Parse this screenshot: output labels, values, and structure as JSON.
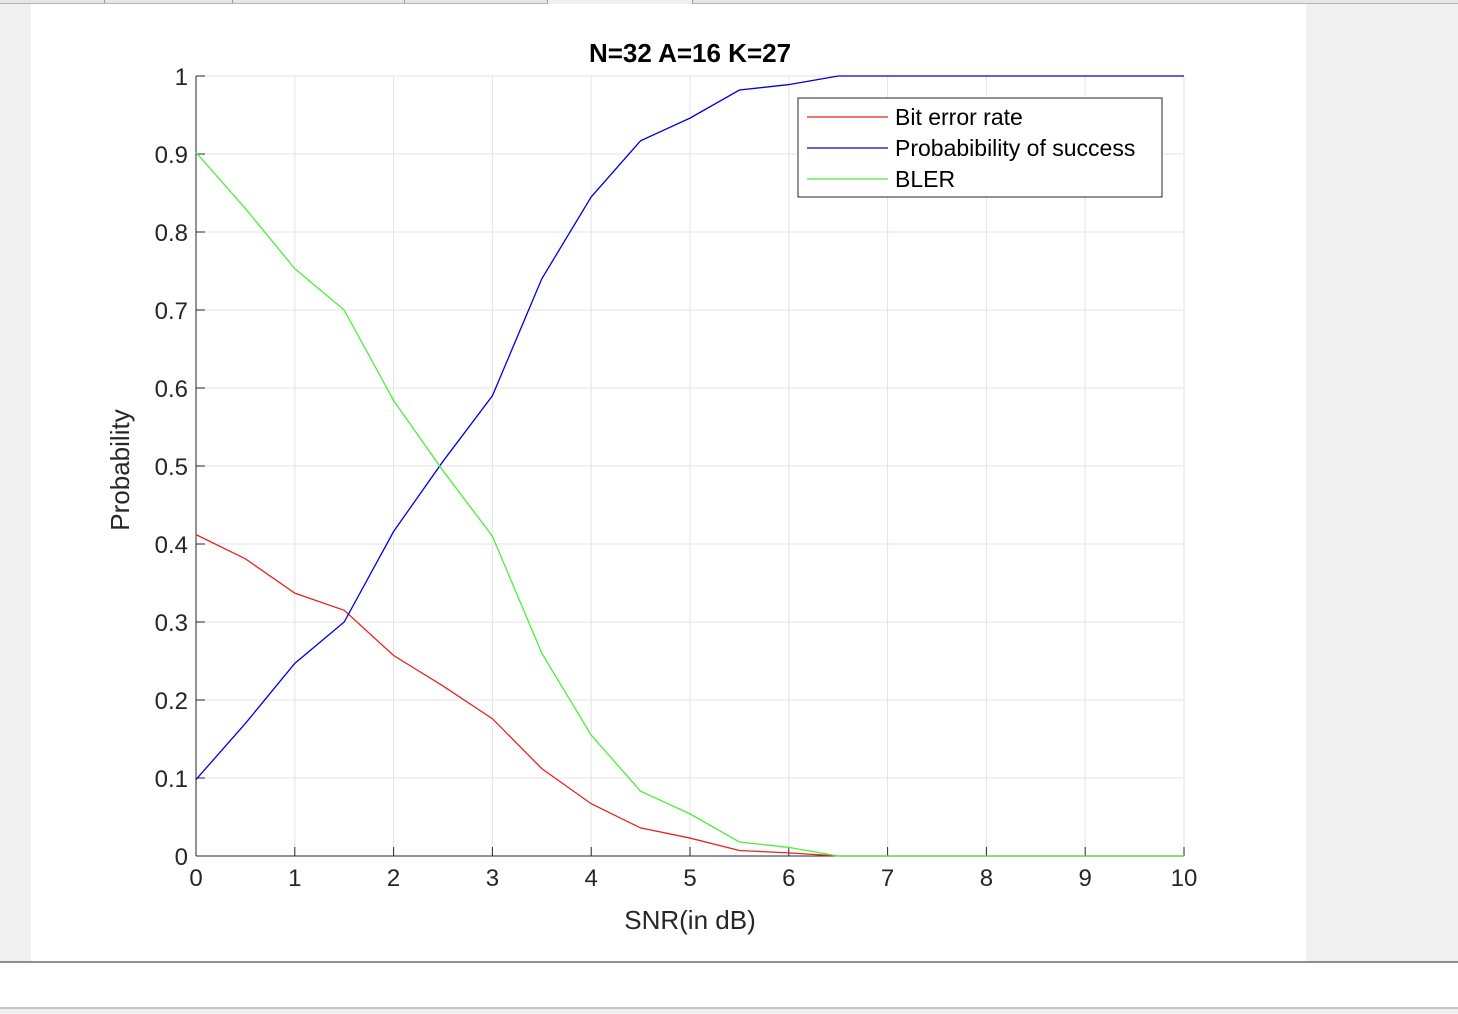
{
  "chart_data": {
    "type": "line",
    "title": "N=32 A=16 K=27",
    "xlabel": "SNR(in dB)",
    "ylabel": "Probability",
    "xlim": [
      0,
      10
    ],
    "ylim": [
      0,
      1
    ],
    "x_ticks": [
      "0",
      "1",
      "2",
      "3",
      "4",
      "5",
      "6",
      "7",
      "8",
      "9",
      "10"
    ],
    "y_ticks": [
      "0",
      "0.1",
      "0.2",
      "0.3",
      "0.4",
      "0.5",
      "0.6",
      "0.7",
      "0.8",
      "0.9",
      "1"
    ],
    "grid": true,
    "legend_position": "top-right",
    "x": [
      0,
      0.5,
      1,
      1.5,
      2,
      2.5,
      3,
      3.5,
      4,
      4.5,
      5,
      5.5,
      6,
      6.5,
      7,
      7.5,
      8,
      8.5,
      9,
      9.5,
      10
    ],
    "series": [
      {
        "name": "Bit error rate",
        "color": "#e8231f",
        "values": [
          0.412,
          0.381,
          0.337,
          0.315,
          0.257,
          0.218,
          0.176,
          0.112,
          0.067,
          0.036,
          0.023,
          0.007,
          0.004,
          0.0,
          0.0,
          0.0,
          0.0,
          0.0,
          0.0,
          0.0,
          0.0
        ]
      },
      {
        "name": "Probabibility of success",
        "color": "#0000e0",
        "values": [
          0.098,
          0.17,
          0.247,
          0.3,
          0.416,
          0.506,
          0.59,
          0.74,
          0.845,
          0.917,
          0.946,
          0.982,
          0.989,
          1.0,
          1.0,
          1.0,
          1.0,
          1.0,
          1.0,
          1.0,
          1.0
        ]
      },
      {
        "name": "BLER",
        "color": "#4cf03a",
        "values": [
          0.902,
          0.83,
          0.753,
          0.7,
          0.584,
          0.494,
          0.41,
          0.26,
          0.155,
          0.083,
          0.054,
          0.018,
          0.011,
          0.0,
          0.0,
          0.0,
          0.0,
          0.0,
          0.0,
          0.0,
          0.0
        ]
      }
    ]
  }
}
